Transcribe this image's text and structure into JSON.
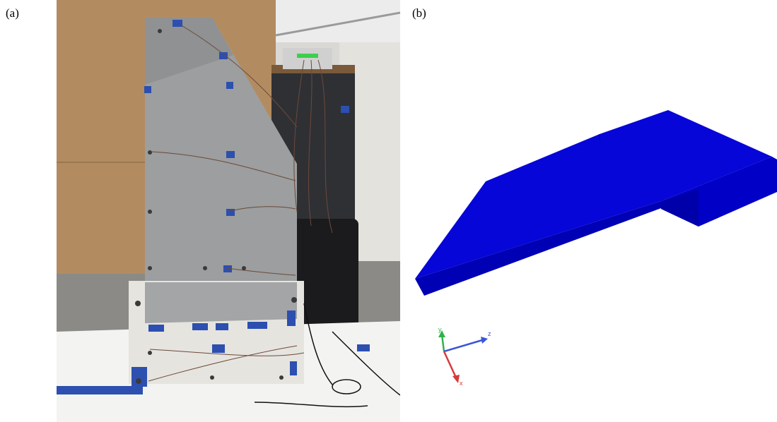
{
  "panel_a": {
    "label": "(a)"
  },
  "panel_b": {
    "label": "(b)",
    "triad": {
      "y": "y",
      "z": "z",
      "x": "x"
    }
  }
}
